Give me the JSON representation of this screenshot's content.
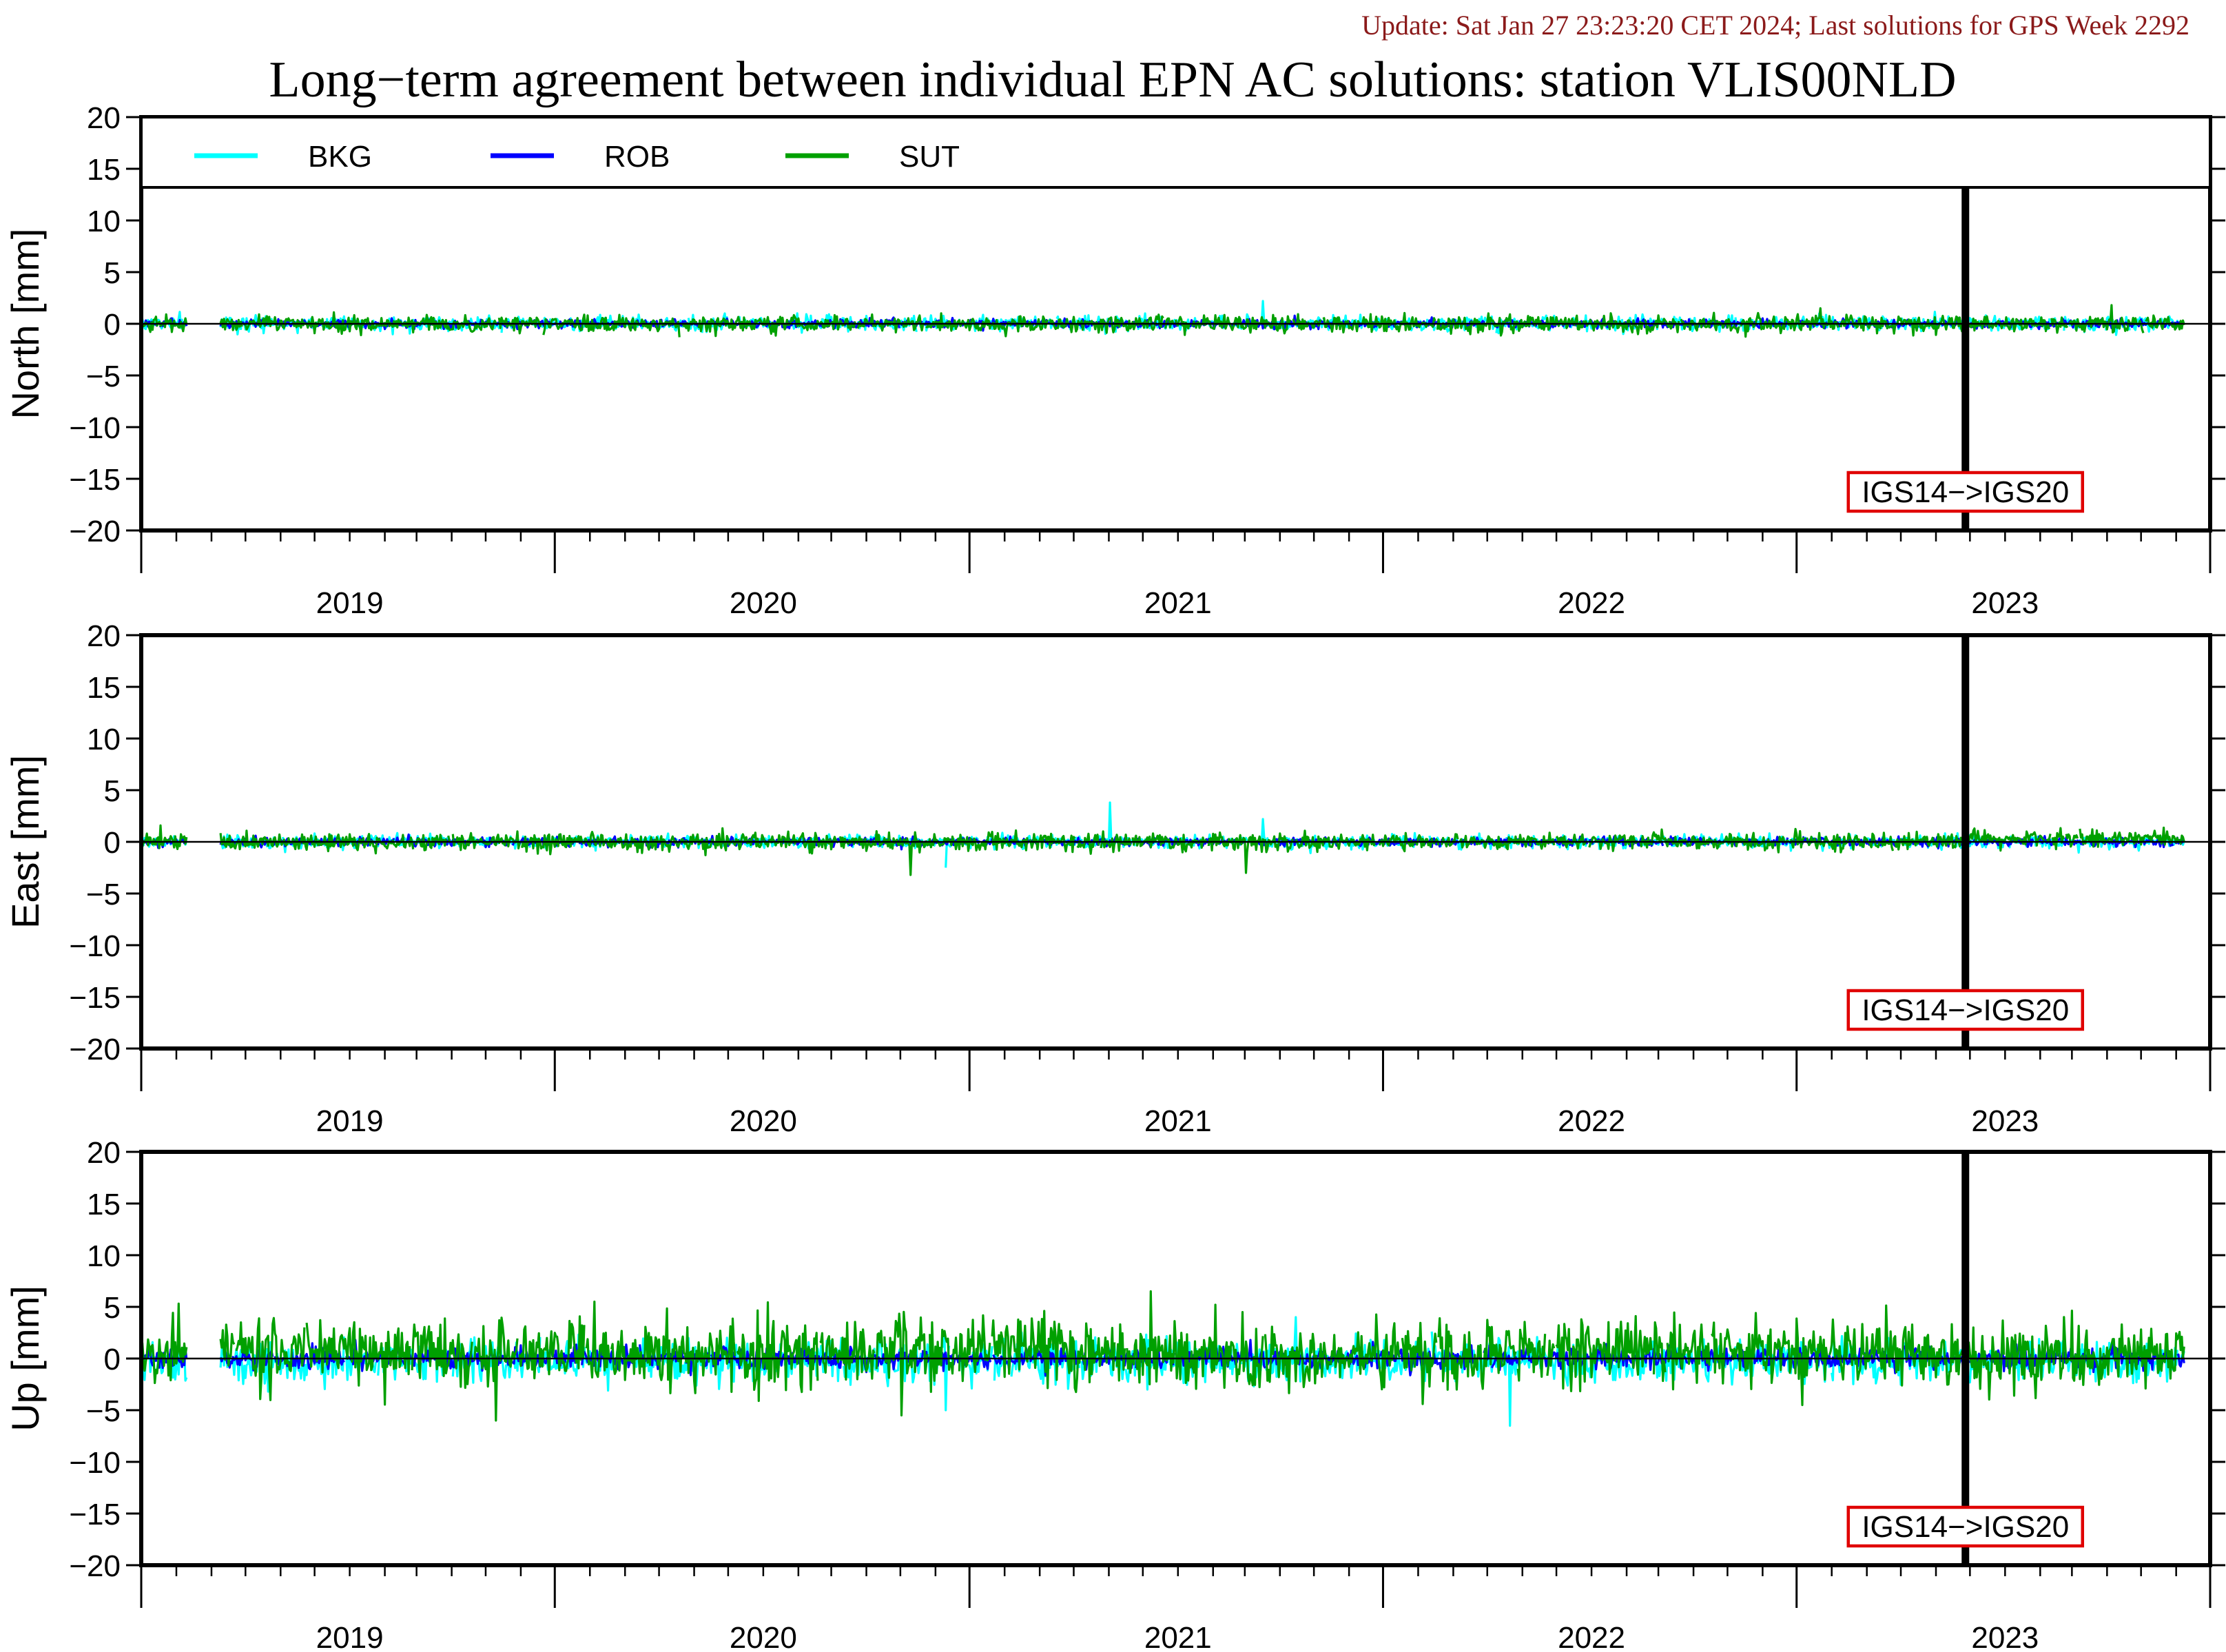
{
  "update_text": "Update: Sat Jan 27 23:23:20 CET 2024; Last solutions for GPS Week 2292",
  "chart_data": {
    "type": "line",
    "title": "Long−term agreement between individual EPN AC solutions: station VLIS00NLD",
    "legend": {
      "placement": "top-left",
      "entries": [
        {
          "name": "BKG",
          "color": "#00ffff"
        },
        {
          "name": "ROB",
          "color": "#0000ff"
        },
        {
          "name": "SUT",
          "color": "#00a000"
        }
      ]
    },
    "x_range": [
      "2018-07-01",
      "2023-07-01"
    ],
    "x_year_labels": [
      "2019",
      "2020",
      "2021",
      "2022",
      "2023"
    ],
    "y_range": [
      -20,
      20
    ],
    "y_ticks": [
      "20",
      "15",
      "10",
      "5",
      "0",
      "−5",
      "−10",
      "−15",
      "−20"
    ],
    "grid": false,
    "data_span": [
      "2018-07-01",
      "2023-06-08"
    ],
    "reference_frame_change": {
      "date": "2022-11-27",
      "label": "IGS14−>IGS20"
    },
    "panels": [
      {
        "ylabel": "North [mm]",
        "series": [
          {
            "name": "BKG",
            "noise_mm": 0.35,
            "spikes": [
              [
                "2019-11-28",
                1.0
              ],
              [
                "2021-03-17",
                2.2
              ],
              [
                "2022-02-15",
                0.9
              ]
            ]
          },
          {
            "name": "ROB",
            "noise_mm": 0.2,
            "spikes": []
          },
          {
            "name": "SUT",
            "noise_mm": 0.4,
            "spikes": [
              [
                "2020-08-02",
                -1.2
              ],
              [
                "2022-07-22",
                1.5
              ],
              [
                "2023-04-05",
                1.8
              ]
            ]
          }
        ]
      },
      {
        "ylabel": "East [mm]",
        "series": [
          {
            "name": "BKG",
            "noise_mm": 0.3,
            "spikes": [
              [
                "2020-06-10",
                -2.5
              ],
              [
                "2020-11-02",
                3.8
              ],
              [
                "2021-03-17",
                2.2
              ]
            ]
          },
          {
            "name": "ROB",
            "noise_mm": 0.2,
            "spikes": []
          },
          {
            "name": "SUT",
            "noise_mm": 0.4,
            "spikes": [
              [
                "2020-05-10",
                -3.2
              ],
              [
                "2021-03-02",
                -3.0
              ],
              [
                "2023-01-20",
                1.0
              ]
            ]
          }
        ]
      },
      {
        "ylabel": "Up [mm]",
        "series": [
          {
            "name": "BKG",
            "noise_mm": 1.0,
            "spikes": [
              [
                "2020-06-10",
                -5.0
              ],
              [
                "2020-12-05",
                -3.0
              ],
              [
                "2021-04-15",
                4.0
              ],
              [
                "2021-10-21",
                -6.5
              ]
            ]
          },
          {
            "name": "ROB",
            "noise_mm": 0.5,
            "spikes": []
          },
          {
            "name": "SUT",
            "noise_mm": 1.5,
            "spikes": [
              [
                "2019-05-10",
                -6.0
              ],
              [
                "2019-08-05",
                5.5
              ],
              [
                "2020-05-02",
                -5.5
              ],
              [
                "2020-12-08",
                6.5
              ],
              [
                "2021-02-03",
                5.2
              ],
              [
                "2022-07-06",
                -4.5
              ]
            ]
          }
        ]
      }
    ]
  }
}
